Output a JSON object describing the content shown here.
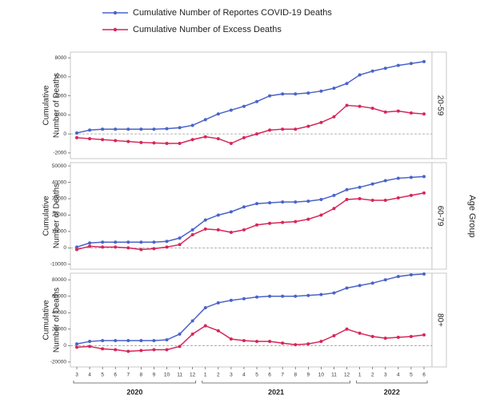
{
  "chart_data": [
    {
      "type": "line",
      "facet_label": "20-59",
      "ylabel_lines": [
        "Cumulative",
        "Number of Deaths"
      ],
      "ylim": [
        -2600,
        8600
      ],
      "yticks": [
        -2000,
        0,
        2000,
        4000,
        6000,
        8000
      ],
      "series": [
        {
          "name": "Cumulative Number of Reportes COVID-19 Deaths",
          "color": "#4a63c8",
          "values": [
            100,
            400,
            500,
            500,
            500,
            500,
            500,
            550,
            650,
            900,
            1500,
            2100,
            2500,
            2900,
            3400,
            4000,
            4200,
            4200,
            4300,
            4500,
            4800,
            5300,
            6200,
            6600,
            6900,
            7200,
            7400,
            7600
          ]
        },
        {
          "name": "Cumulative Number of Excess Deaths",
          "color": "#d6265a",
          "values": [
            -400,
            -500,
            -600,
            -700,
            -800,
            -900,
            -950,
            -1000,
            -1000,
            -600,
            -300,
            -500,
            -1000,
            -400,
            0,
            400,
            500,
            500,
            800,
            1200,
            1800,
            3000,
            2900,
            2700,
            2300,
            2400,
            2200,
            2100
          ]
        }
      ]
    },
    {
      "type": "line",
      "facet_label": "60-79",
      "ylabel_lines": [
        "Cumulative",
        "Number of Deaths"
      ],
      "ylim": [
        -13000,
        52000
      ],
      "yticks": [
        -10000,
        0,
        10000,
        20000,
        30000,
        40000,
        50000
      ],
      "series": [
        {
          "color": "#4a63c8",
          "values": [
            500,
            3000,
            3500,
            3500,
            3500,
            3500,
            3500,
            4000,
            6000,
            11000,
            17000,
            20000,
            22000,
            25000,
            27000,
            27500,
            28000,
            28000,
            28500,
            29500,
            32000,
            35500,
            37000,
            39000,
            41000,
            42500,
            43000,
            43500
          ]
        },
        {
          "color": "#d6265a",
          "values": [
            -1000,
            1000,
            500,
            500,
            0,
            -1000,
            -500,
            500,
            2000,
            8000,
            11500,
            11000,
            9500,
            11000,
            14000,
            15000,
            15500,
            16000,
            17500,
            20000,
            24000,
            29500,
            30000,
            29000,
            29000,
            30500,
            32000,
            33500
          ]
        }
      ]
    },
    {
      "type": "line",
      "facet_label": "80+",
      "ylabel_lines": [
        "Cumulative",
        "Number of Deaths"
      ],
      "ylim": [
        -26000,
        88000
      ],
      "yticks": [
        -20000,
        0,
        20000,
        40000,
        60000,
        80000
      ],
      "categories": [
        "3",
        "4",
        "5",
        "6",
        "7",
        "8",
        "9",
        "10",
        "11",
        "12",
        "1",
        "2",
        "3",
        "4",
        "5",
        "6",
        "7",
        "8",
        "9",
        "10",
        "11",
        "12",
        "1",
        "2",
        "3",
        "4",
        "5",
        "6"
      ],
      "years": [
        "2020",
        "2021",
        "2022"
      ],
      "series": [
        {
          "color": "#4a63c8",
          "values": [
            2000,
            5000,
            6000,
            6000,
            6000,
            6000,
            6000,
            7000,
            14000,
            30000,
            46000,
            52000,
            55000,
            57000,
            59000,
            60000,
            60000,
            60000,
            61000,
            62000,
            64000,
            70000,
            73000,
            76000,
            80000,
            84000,
            86000,
            87000
          ]
        },
        {
          "color": "#d6265a",
          "values": [
            -2000,
            -1000,
            -4000,
            -5000,
            -7000,
            -6000,
            -5000,
            -5000,
            -1000,
            14000,
            24000,
            18000,
            8000,
            6000,
            5000,
            5000,
            3000,
            1000,
            2000,
            5000,
            12000,
            20000,
            15000,
            11000,
            9000,
            10000,
            11000,
            13000
          ]
        }
      ]
    }
  ],
  "facet_title": "Age Group"
}
